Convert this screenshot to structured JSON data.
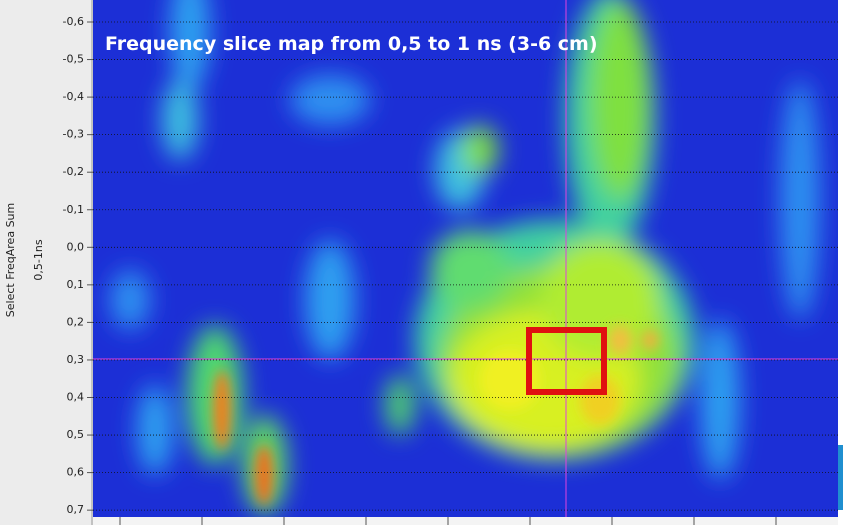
{
  "overlay": {
    "title": "Frequency slice map from 0,5 to 1 ns (3-6 cm)"
  },
  "axis": {
    "label": "Select FreqArea Sum",
    "sublabel": "0,5-1ns",
    "ticks": [
      "-0,6",
      "-0,5",
      "-0,4",
      "-0,3",
      "-0,2",
      "-0,1",
      "0,0",
      "0,1",
      "0,2",
      "0,3",
      "0,4",
      "0,5",
      "0,6",
      "0,7"
    ]
  }
}
